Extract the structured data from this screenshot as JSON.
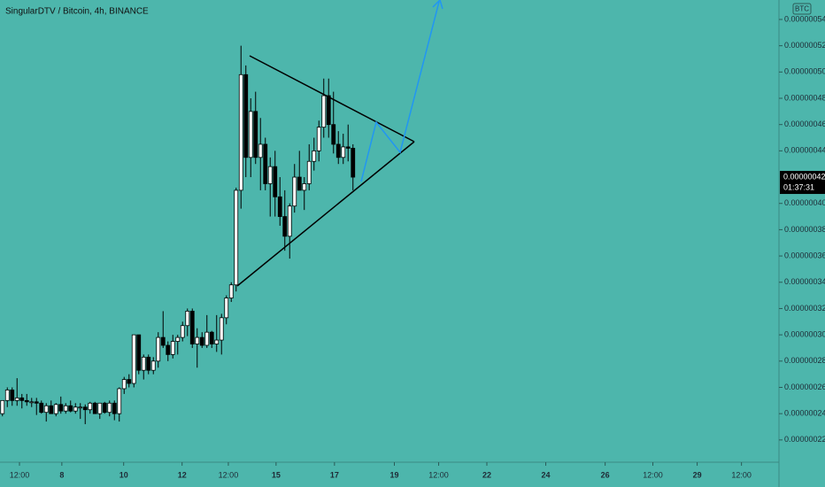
{
  "chart_data": {
    "type": "candlestick",
    "title": "SingularDTV / Bitcoin, 4h, BINANCE",
    "currency": "BTC",
    "up_color": "#ffffff",
    "down_color": "#000000",
    "open": [
      2.4e-07,
      2.5e-07,
      2.58e-07,
      2.5e-07,
      2.52e-07,
      2.5e-07,
      2.49e-07,
      2.49e-07,
      2.48e-07,
      2.41e-07,
      2.46e-07,
      2.4e-07,
      2.47e-07,
      2.42e-07,
      2.46e-07,
      2.42e-07,
      2.45e-07,
      2.45e-07,
      2.43e-07,
      2.48e-07,
      2.4e-07,
      2.48e-07,
      2.41e-07,
      2.48e-07,
      2.4e-07,
      2.59e-07,
      2.66e-07,
      2.63e-07,
      3e-07,
      2.73e-07,
      2.83e-07,
      2.73e-07,
      2.8e-07,
      2.98e-07,
      2.92e-07,
      2.85e-07,
      2.95e-07,
      2.98e-07,
      3.07e-07,
      3.18e-07,
      2.93e-07,
      2.98e-07,
      2.92e-07,
      3.02e-07,
      2.93e-07,
      2.96e-07,
      3.13e-07,
      3.28e-07,
      3.38e-07,
      4.1e-07,
      4.98e-07,
      4.35e-07,
      4.7e-07,
      4.35e-07,
      4.45e-07,
      4.15e-07,
      4.28e-07,
      4.05e-07,
      3.9e-07,
      3.75e-07,
      3.98e-07,
      4.2e-07,
      4.1e-07,
      4.15e-07,
      4.32e-07,
      4.4e-07,
      4.58e-07,
      4.82e-07,
      4.6e-07,
      4.45e-07,
      4.35e-07,
      4.43e-07,
      4.42e-07
    ],
    "high": [
      2.5e-07,
      2.6e-07,
      2.6e-07,
      2.67e-07,
      2.55e-07,
      2.55e-07,
      2.52e-07,
      2.52e-07,
      2.5e-07,
      2.48e-07,
      2.5e-07,
      2.48e-07,
      2.53e-07,
      2.48e-07,
      2.5e-07,
      2.48e-07,
      2.48e-07,
      2.47e-07,
      2.49e-07,
      2.49e-07,
      2.48e-07,
      2.49e-07,
      2.5e-07,
      2.5e-07,
      2.6e-07,
      2.68e-07,
      2.7e-07,
      3e-07,
      3e-07,
      2.85e-07,
      2.85e-07,
      2.83e-07,
      3.02e-07,
      3.18e-07,
      2.95e-07,
      3e-07,
      3e-07,
      3.1e-07,
      3.2e-07,
      3.2e-07,
      3.05e-07,
      3.02e-07,
      3.15e-07,
      3.03e-07,
      3.15e-07,
      3.16e-07,
      3.3e-07,
      3.4e-07,
      4.12e-07,
      5.2e-07,
      5.05e-07,
      4.8e-07,
      4.85e-07,
      4.65e-07,
      4.5e-07,
      4.35e-07,
      4.4e-07,
      4.2e-07,
      4.1e-07,
      4e-07,
      4.3e-07,
      4.4e-07,
      4.2e-07,
      4.45e-07,
      4.5e-07,
      4.63e-07,
      4.95e-07,
      4.95e-07,
      4.85e-07,
      4.55e-07,
      4.53e-07,
      4.6e-07,
      4.45e-07
    ],
    "low": [
      2.38e-07,
      2.45e-07,
      2.46e-07,
      2.46e-07,
      2.44e-07,
      2.46e-07,
      2.45e-07,
      2.39e-07,
      2.4e-07,
      2.34e-07,
      2.4e-07,
      2.38e-07,
      2.4e-07,
      2.4e-07,
      2.41e-07,
      2.4e-07,
      2.36e-07,
      2.32e-07,
      2.4e-07,
      2.4e-07,
      2.36e-07,
      2.4e-07,
      2.38e-07,
      2.35e-07,
      2.34e-07,
      2.55e-07,
      2.6e-07,
      2.6e-07,
      2.7e-07,
      2.66e-07,
      2.7e-07,
      2.7e-07,
      2.75e-07,
      2.9e-07,
      2.8e-07,
      2.82e-07,
      2.85e-07,
      2.95e-07,
      2.99e-07,
      2.9e-07,
      2.75e-07,
      2.9e-07,
      2.9e-07,
      2.9e-07,
      2.87e-07,
      2.85e-07,
      3.08e-07,
      3.25e-07,
      3.33e-07,
      3.96e-07,
      4.2e-07,
      4.2e-07,
      4.3e-07,
      4.1e-07,
      4.1e-07,
      3.9e-07,
      3.9e-07,
      3.83e-07,
      3.64e-07,
      3.58e-07,
      3.93e-07,
      4.1e-07,
      3.95e-07,
      4.1e-07,
      4.25e-07,
      4.32e-07,
      4.5e-07,
      4.5e-07,
      4.38e-07,
      4.3e-07,
      4.3e-07,
      4.32e-07,
      4.1e-07
    ],
    "close": [
      2.5e-07,
      2.58e-07,
      2.5e-07,
      2.52e-07,
      2.5e-07,
      2.49e-07,
      2.49e-07,
      2.48e-07,
      2.41e-07,
      2.46e-07,
      2.4e-07,
      2.47e-07,
      2.42e-07,
      2.46e-07,
      2.42e-07,
      2.45e-07,
      2.45e-07,
      2.43e-07,
      2.48e-07,
      2.4e-07,
      2.48e-07,
      2.41e-07,
      2.48e-07,
      2.4e-07,
      2.59e-07,
      2.66e-07,
      2.63e-07,
      3e-07,
      2.73e-07,
      2.83e-07,
      2.73e-07,
      2.8e-07,
      2.98e-07,
      2.92e-07,
      2.85e-07,
      2.95e-07,
      2.98e-07,
      3.07e-07,
      3.18e-07,
      2.93e-07,
      2.98e-07,
      2.92e-07,
      3.02e-07,
      2.93e-07,
      2.96e-07,
      3.13e-07,
      3.28e-07,
      3.38e-07,
      4.1e-07,
      4.98e-07,
      4.35e-07,
      4.7e-07,
      4.35e-07,
      4.45e-07,
      4.15e-07,
      4.28e-07,
      4.05e-07,
      3.9e-07,
      3.75e-07,
      3.98e-07,
      4.2e-07,
      4.1e-07,
      4.15e-07,
      4.32e-07,
      4.4e-07,
      4.58e-07,
      4.82e-07,
      4.6e-07,
      4.45e-07,
      4.35e-07,
      4.43e-07,
      4.42e-07,
      4.2e-07
    ],
    "xlim": [
      -0.5,
      159.5
    ],
    "xticks": [
      {
        "value": 3.5,
        "label": "12:00"
      },
      {
        "value": 12.2,
        "label": "8"
      },
      {
        "value": 24.9,
        "label": "10"
      },
      {
        "value": 36.9,
        "label": "12"
      },
      {
        "value": 46.4,
        "label": "12:00"
      },
      {
        "value": 56.2,
        "label": "15"
      },
      {
        "value": 68.2,
        "label": "17"
      },
      {
        "value": 80.5,
        "label": "19"
      },
      {
        "value": 89.6,
        "label": "12:00"
      },
      {
        "value": 99.5,
        "label": "22"
      },
      {
        "value": 111.6,
        "label": "24"
      },
      {
        "value": 123.8,
        "label": "26"
      },
      {
        "value": 133.6,
        "label": "12:00"
      },
      {
        "value": 142.7,
        "label": "29"
      },
      {
        "value": 151.8,
        "label": "12:00"
      }
    ],
    "ylim": [
      2.044e-07,
      5.548e-07
    ],
    "yticks": [
      {
        "value": 2.2e-07,
        "label": "0.00000022"
      },
      {
        "value": 2.4e-07,
        "label": "0.00000024"
      },
      {
        "value": 2.6e-07,
        "label": "0.00000026"
      },
      {
        "value": 2.8e-07,
        "label": "0.00000028"
      },
      {
        "value": 3e-07,
        "label": "0.00000030"
      },
      {
        "value": 3.2e-07,
        "label": "0.00000032"
      },
      {
        "value": 3.4e-07,
        "label": "0.00000034"
      },
      {
        "value": 3.6e-07,
        "label": "0.00000036"
      },
      {
        "value": 3.8e-07,
        "label": "0.00000038"
      },
      {
        "value": 4e-07,
        "label": "0.00000040"
      },
      {
        "value": 4.4e-07,
        "label": "0.00000044"
      },
      {
        "value": 4.6e-07,
        "label": "0.00000046"
      },
      {
        "value": 4.8e-07,
        "label": "0.00000048"
      },
      {
        "value": 5e-07,
        "label": "0.00000050"
      },
      {
        "value": 5.2e-07,
        "label": "0.00000052"
      },
      {
        "value": 5.4e-07,
        "label": "0.00000054"
      }
    ],
    "last_price": {
      "value": 4.2e-07,
      "label": "0.00000042"
    },
    "countdown": "01:37:31"
  }
}
